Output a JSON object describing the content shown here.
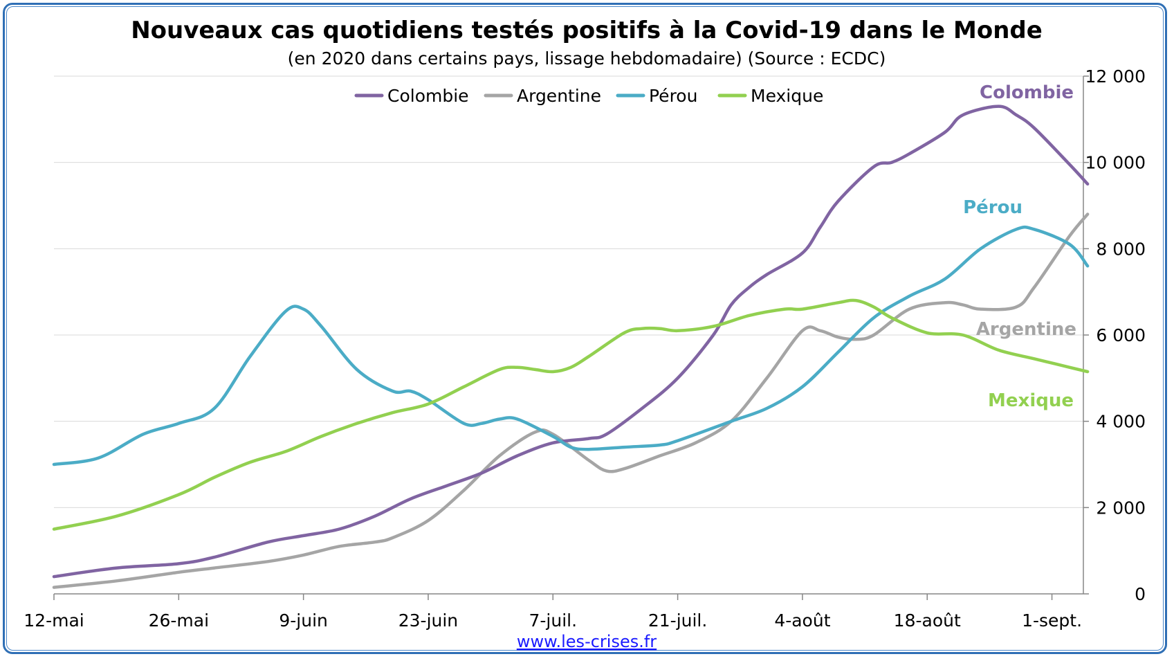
{
  "chart_data": {
    "type": "line",
    "title": "Nouveaux cas quotidiens testés positifs à la Covid-19 dans le Monde",
    "subtitle": "(en 2020 dans certains pays, lissage hebdomadaire) (Source : ECDC)",
    "xlabel": "",
    "ylabel": "",
    "ylim": [
      0,
      12000
    ],
    "yticks": [
      {
        "value": 0,
        "label": "0"
      },
      {
        "value": 2000,
        "label": "2 000"
      },
      {
        "value": 4000,
        "label": "4 000"
      },
      {
        "value": 6000,
        "label": "6 000"
      },
      {
        "value": 8000,
        "label": "8 000"
      },
      {
        "value": 10000,
        "label": "10 000"
      },
      {
        "value": 12000,
        "label": "12 000"
      }
    ],
    "xticks": [
      {
        "day": 0,
        "label": "12-mai"
      },
      {
        "day": 14,
        "label": "26-mai"
      },
      {
        "day": 28,
        "label": "9-juin"
      },
      {
        "day": 42,
        "label": "23-juin"
      },
      {
        "day": 56,
        "label": "7-juil."
      },
      {
        "day": 70,
        "label": "21-juil."
      },
      {
        "day": 84,
        "label": "4-août"
      },
      {
        "day": 98,
        "label": "18-août"
      },
      {
        "day": 112,
        "label": "1-sept."
      }
    ],
    "xlim": [
      0,
      114
    ],
    "grid": true,
    "legend_position": "top-center",
    "series": [
      {
        "name": "Colombie",
        "color": "#8064a2",
        "end_label": "Colombie",
        "points": [
          [
            0,
            400
          ],
          [
            7,
            600
          ],
          [
            14,
            700
          ],
          [
            18,
            850
          ],
          [
            24,
            1200
          ],
          [
            28,
            1350
          ],
          [
            32,
            1500
          ],
          [
            36,
            1800
          ],
          [
            40,
            2200
          ],
          [
            44,
            2500
          ],
          [
            48,
            2800
          ],
          [
            52,
            3200
          ],
          [
            56,
            3500
          ],
          [
            60,
            3600
          ],
          [
            62,
            3700
          ],
          [
            66,
            4300
          ],
          [
            70,
            5000
          ],
          [
            74,
            6000
          ],
          [
            76,
            6700
          ],
          [
            78,
            7100
          ],
          [
            80,
            7400
          ],
          [
            84,
            7900
          ],
          [
            86,
            8500
          ],
          [
            88,
            9100
          ],
          [
            92,
            9900
          ],
          [
            94,
            10000
          ],
          [
            96,
            10200
          ],
          [
            100,
            10700
          ],
          [
            102,
            11100
          ],
          [
            106,
            11300
          ],
          [
            108,
            11100
          ],
          [
            110,
            10800
          ],
          [
            114,
            9950
          ],
          [
            116,
            9500
          ]
        ]
      },
      {
        "name": "Argentine",
        "color": "#a5a5a5",
        "end_label": "Argentine",
        "points": [
          [
            0,
            150
          ],
          [
            7,
            300
          ],
          [
            14,
            500
          ],
          [
            18,
            600
          ],
          [
            24,
            750
          ],
          [
            28,
            900
          ],
          [
            32,
            1100
          ],
          [
            36,
            1200
          ],
          [
            38,
            1300
          ],
          [
            42,
            1700
          ],
          [
            46,
            2400
          ],
          [
            50,
            3200
          ],
          [
            54,
            3750
          ],
          [
            56,
            3700
          ],
          [
            60,
            3100
          ],
          [
            62,
            2850
          ],
          [
            64,
            2900
          ],
          [
            68,
            3200
          ],
          [
            72,
            3500
          ],
          [
            76,
            4000
          ],
          [
            80,
            5000
          ],
          [
            84,
            6100
          ],
          [
            86,
            6100
          ],
          [
            88,
            5950
          ],
          [
            90,
            5900
          ],
          [
            92,
            6000
          ],
          [
            96,
            6600
          ],
          [
            100,
            6750
          ],
          [
            102,
            6700
          ],
          [
            104,
            6600
          ],
          [
            108,
            6650
          ],
          [
            110,
            7100
          ],
          [
            114,
            8300
          ],
          [
            116,
            8800
          ]
        ]
      },
      {
        "name": "Pérou",
        "color": "#4bacc6",
        "end_label": "Pérou",
        "points": [
          [
            0,
            3000
          ],
          [
            5,
            3150
          ],
          [
            10,
            3700
          ],
          [
            14,
            3950
          ],
          [
            18,
            4300
          ],
          [
            22,
            5500
          ],
          [
            26,
            6550
          ],
          [
            28,
            6600
          ],
          [
            30,
            6200
          ],
          [
            34,
            5200
          ],
          [
            38,
            4700
          ],
          [
            40,
            4700
          ],
          [
            42,
            4500
          ],
          [
            46,
            3950
          ],
          [
            48,
            3950
          ],
          [
            50,
            4050
          ],
          [
            52,
            4050
          ],
          [
            56,
            3650
          ],
          [
            58,
            3400
          ],
          [
            60,
            3350
          ],
          [
            64,
            3400
          ],
          [
            68,
            3450
          ],
          [
            70,
            3550
          ],
          [
            76,
            4000
          ],
          [
            80,
            4300
          ],
          [
            84,
            4800
          ],
          [
            88,
            5600
          ],
          [
            92,
            6400
          ],
          [
            96,
            6900
          ],
          [
            100,
            7300
          ],
          [
            104,
            8000
          ],
          [
            108,
            8450
          ],
          [
            110,
            8450
          ],
          [
            114,
            8100
          ],
          [
            116,
            7600
          ]
        ]
      },
      {
        "name": "Mexique",
        "color": "#92d050",
        "end_label": "Mexique",
        "points": [
          [
            0,
            1500
          ],
          [
            7,
            1800
          ],
          [
            14,
            2300
          ],
          [
            18,
            2700
          ],
          [
            22,
            3050
          ],
          [
            26,
            3300
          ],
          [
            30,
            3650
          ],
          [
            34,
            3950
          ],
          [
            38,
            4200
          ],
          [
            42,
            4400
          ],
          [
            46,
            4800
          ],
          [
            50,
            5200
          ],
          [
            52,
            5250
          ],
          [
            54,
            5200
          ],
          [
            56,
            5150
          ],
          [
            58,
            5250
          ],
          [
            60,
            5500
          ],
          [
            64,
            6050
          ],
          [
            66,
            6150
          ],
          [
            68,
            6150
          ],
          [
            70,
            6100
          ],
          [
            74,
            6200
          ],
          [
            78,
            6450
          ],
          [
            82,
            6600
          ],
          [
            84,
            6600
          ],
          [
            88,
            6750
          ],
          [
            90,
            6800
          ],
          [
            92,
            6650
          ],
          [
            94,
            6400
          ],
          [
            98,
            6050
          ],
          [
            102,
            6000
          ],
          [
            106,
            5650
          ],
          [
            110,
            5450
          ],
          [
            114,
            5250
          ],
          [
            116,
            5150
          ]
        ]
      }
    ]
  },
  "source_link": "www.les-crises.fr"
}
